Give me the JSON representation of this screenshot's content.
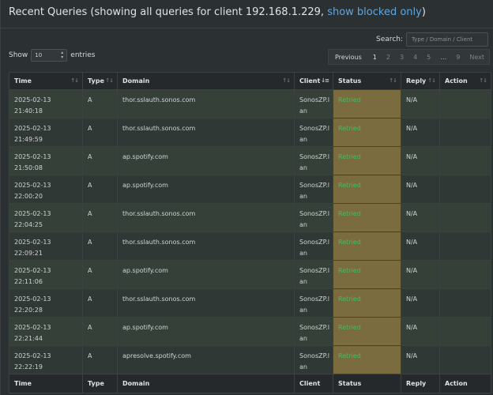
{
  "header": {
    "title_prefix": "Recent Queries (showing all queries for client 192.168.1.229, ",
    "link": "show blocked only",
    "title_suffix": ")"
  },
  "search": {
    "label": "Search:",
    "placeholder": "Type / Domain / Client"
  },
  "length": {
    "prefix": "Show",
    "value": "10",
    "suffix": "entries"
  },
  "pagination": {
    "previous": "Previous",
    "pages": [
      "1",
      "2",
      "3",
      "4",
      "5",
      "…",
      "9"
    ],
    "next": "Next",
    "active": "1"
  },
  "columns": [
    "Time",
    "Type",
    "Domain",
    "Client",
    "Status",
    "Reply",
    "Action"
  ],
  "rows": [
    {
      "time": "2025-02-13 21:40:18",
      "type": "A",
      "domain": "thor.sslauth.sonos.com",
      "client1": "SonosZP.l",
      "client2": "an",
      "status": "Retried",
      "reply": "N/A"
    },
    {
      "time": "2025-02-13 21:49:59",
      "type": "A",
      "domain": "thor.sslauth.sonos.com",
      "client1": "SonosZP.l",
      "client2": "an",
      "status": "Retried",
      "reply": "N/A"
    },
    {
      "time": "2025-02-13 21:50:08",
      "type": "A",
      "domain": "ap.spotify.com",
      "client1": "SonosZP.l",
      "client2": "an",
      "status": "Retried",
      "reply": "N/A"
    },
    {
      "time": "2025-02-13 22:00:20",
      "type": "A",
      "domain": "ap.spotify.com",
      "client1": "SonosZP.l",
      "client2": "an",
      "status": "Retried",
      "reply": "N/A"
    },
    {
      "time": "2025-02-13 22:04:25",
      "type": "A",
      "domain": "thor.sslauth.sonos.com",
      "client1": "SonosZP.l",
      "client2": "an",
      "status": "Retried",
      "reply": "N/A"
    },
    {
      "time": "2025-02-13 22:09:21",
      "type": "A",
      "domain": "thor.sslauth.sonos.com",
      "client1": "SonosZP.l",
      "client2": "an",
      "status": "Retried",
      "reply": "N/A"
    },
    {
      "time": "2025-02-13 22:11:06",
      "type": "A",
      "domain": "ap.spotify.com",
      "client1": "SonosZP.l",
      "client2": "an",
      "status": "Retried",
      "reply": "N/A"
    },
    {
      "time": "2025-02-13 22:20:28",
      "type": "A",
      "domain": "thor.sslauth.sonos.com",
      "client1": "SonosZP.l",
      "client2": "an",
      "status": "Retried",
      "reply": "N/A"
    },
    {
      "time": "2025-02-13 22:21:44",
      "type": "A",
      "domain": "ap.spotify.com",
      "client1": "SonosZP.l",
      "client2": "an",
      "status": "Retried",
      "reply": "N/A"
    },
    {
      "time": "2025-02-13 22:22:19",
      "type": "A",
      "domain": "apresolve.spotify.com",
      "client1": "SonosZP.l",
      "client2": "an",
      "status": "Retried",
      "reply": "N/A"
    }
  ]
}
